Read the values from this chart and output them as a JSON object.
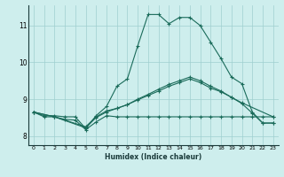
{
  "xlabel": "Humidex (Indice chaleur)",
  "background_color": "#ceeeed",
  "grid_color": "#9fcfcf",
  "line_color": "#1a6b5a",
  "xlim": [
    -0.5,
    23.5
  ],
  "ylim": [
    7.75,
    11.55
  ],
  "xticks": [
    0,
    1,
    2,
    3,
    4,
    5,
    6,
    7,
    8,
    9,
    10,
    11,
    12,
    13,
    14,
    15,
    16,
    17,
    18,
    19,
    20,
    21,
    22,
    23
  ],
  "yticks": [
    8,
    9,
    10,
    11
  ],
  "line1_x": [
    0,
    1,
    2,
    3,
    4,
    5,
    6,
    7,
    8,
    9,
    10,
    11,
    12,
    13,
    14,
    15,
    16,
    17,
    18,
    19,
    20,
    21,
    22,
    23
  ],
  "line1_y": [
    8.65,
    8.55,
    8.55,
    8.52,
    8.52,
    8.2,
    8.55,
    8.8,
    9.35,
    9.55,
    10.45,
    11.3,
    11.3,
    11.05,
    11.22,
    11.22,
    11.0,
    10.55,
    10.1,
    9.6,
    9.42,
    8.65,
    8.35,
    8.35
  ],
  "line2_x": [
    0,
    1,
    2,
    3,
    4,
    5,
    6,
    7,
    8,
    9,
    10,
    11,
    12,
    13,
    14,
    15,
    16,
    17,
    18,
    19,
    20,
    21,
    22,
    23
  ],
  "line2_y": [
    8.65,
    8.52,
    8.52,
    8.45,
    8.43,
    8.17,
    8.38,
    8.55,
    8.52,
    8.52,
    8.52,
    8.52,
    8.52,
    8.52,
    8.52,
    8.52,
    8.52,
    8.52,
    8.52,
    8.52,
    8.52,
    8.52,
    8.52,
    8.52
  ],
  "line3_x": [
    0,
    2,
    5,
    6,
    7,
    8,
    9,
    10,
    11,
    12,
    13,
    14,
    15,
    16,
    17,
    18,
    19,
    20,
    23
  ],
  "line3_y": [
    8.65,
    8.52,
    8.25,
    8.52,
    8.68,
    8.75,
    8.85,
    9.0,
    9.13,
    9.27,
    9.4,
    9.5,
    9.6,
    9.5,
    9.35,
    9.22,
    9.05,
    8.9,
    8.52
  ],
  "line4_x": [
    0,
    2,
    5,
    6,
    7,
    8,
    9,
    10,
    11,
    12,
    13,
    14,
    15,
    16,
    17,
    18,
    19,
    20,
    21,
    22,
    23
  ],
  "line4_y": [
    8.65,
    8.52,
    8.22,
    8.5,
    8.65,
    8.75,
    8.85,
    8.98,
    9.1,
    9.22,
    9.35,
    9.45,
    9.55,
    9.45,
    9.3,
    9.2,
    9.05,
    8.88,
    8.62,
    8.35,
    8.35
  ]
}
